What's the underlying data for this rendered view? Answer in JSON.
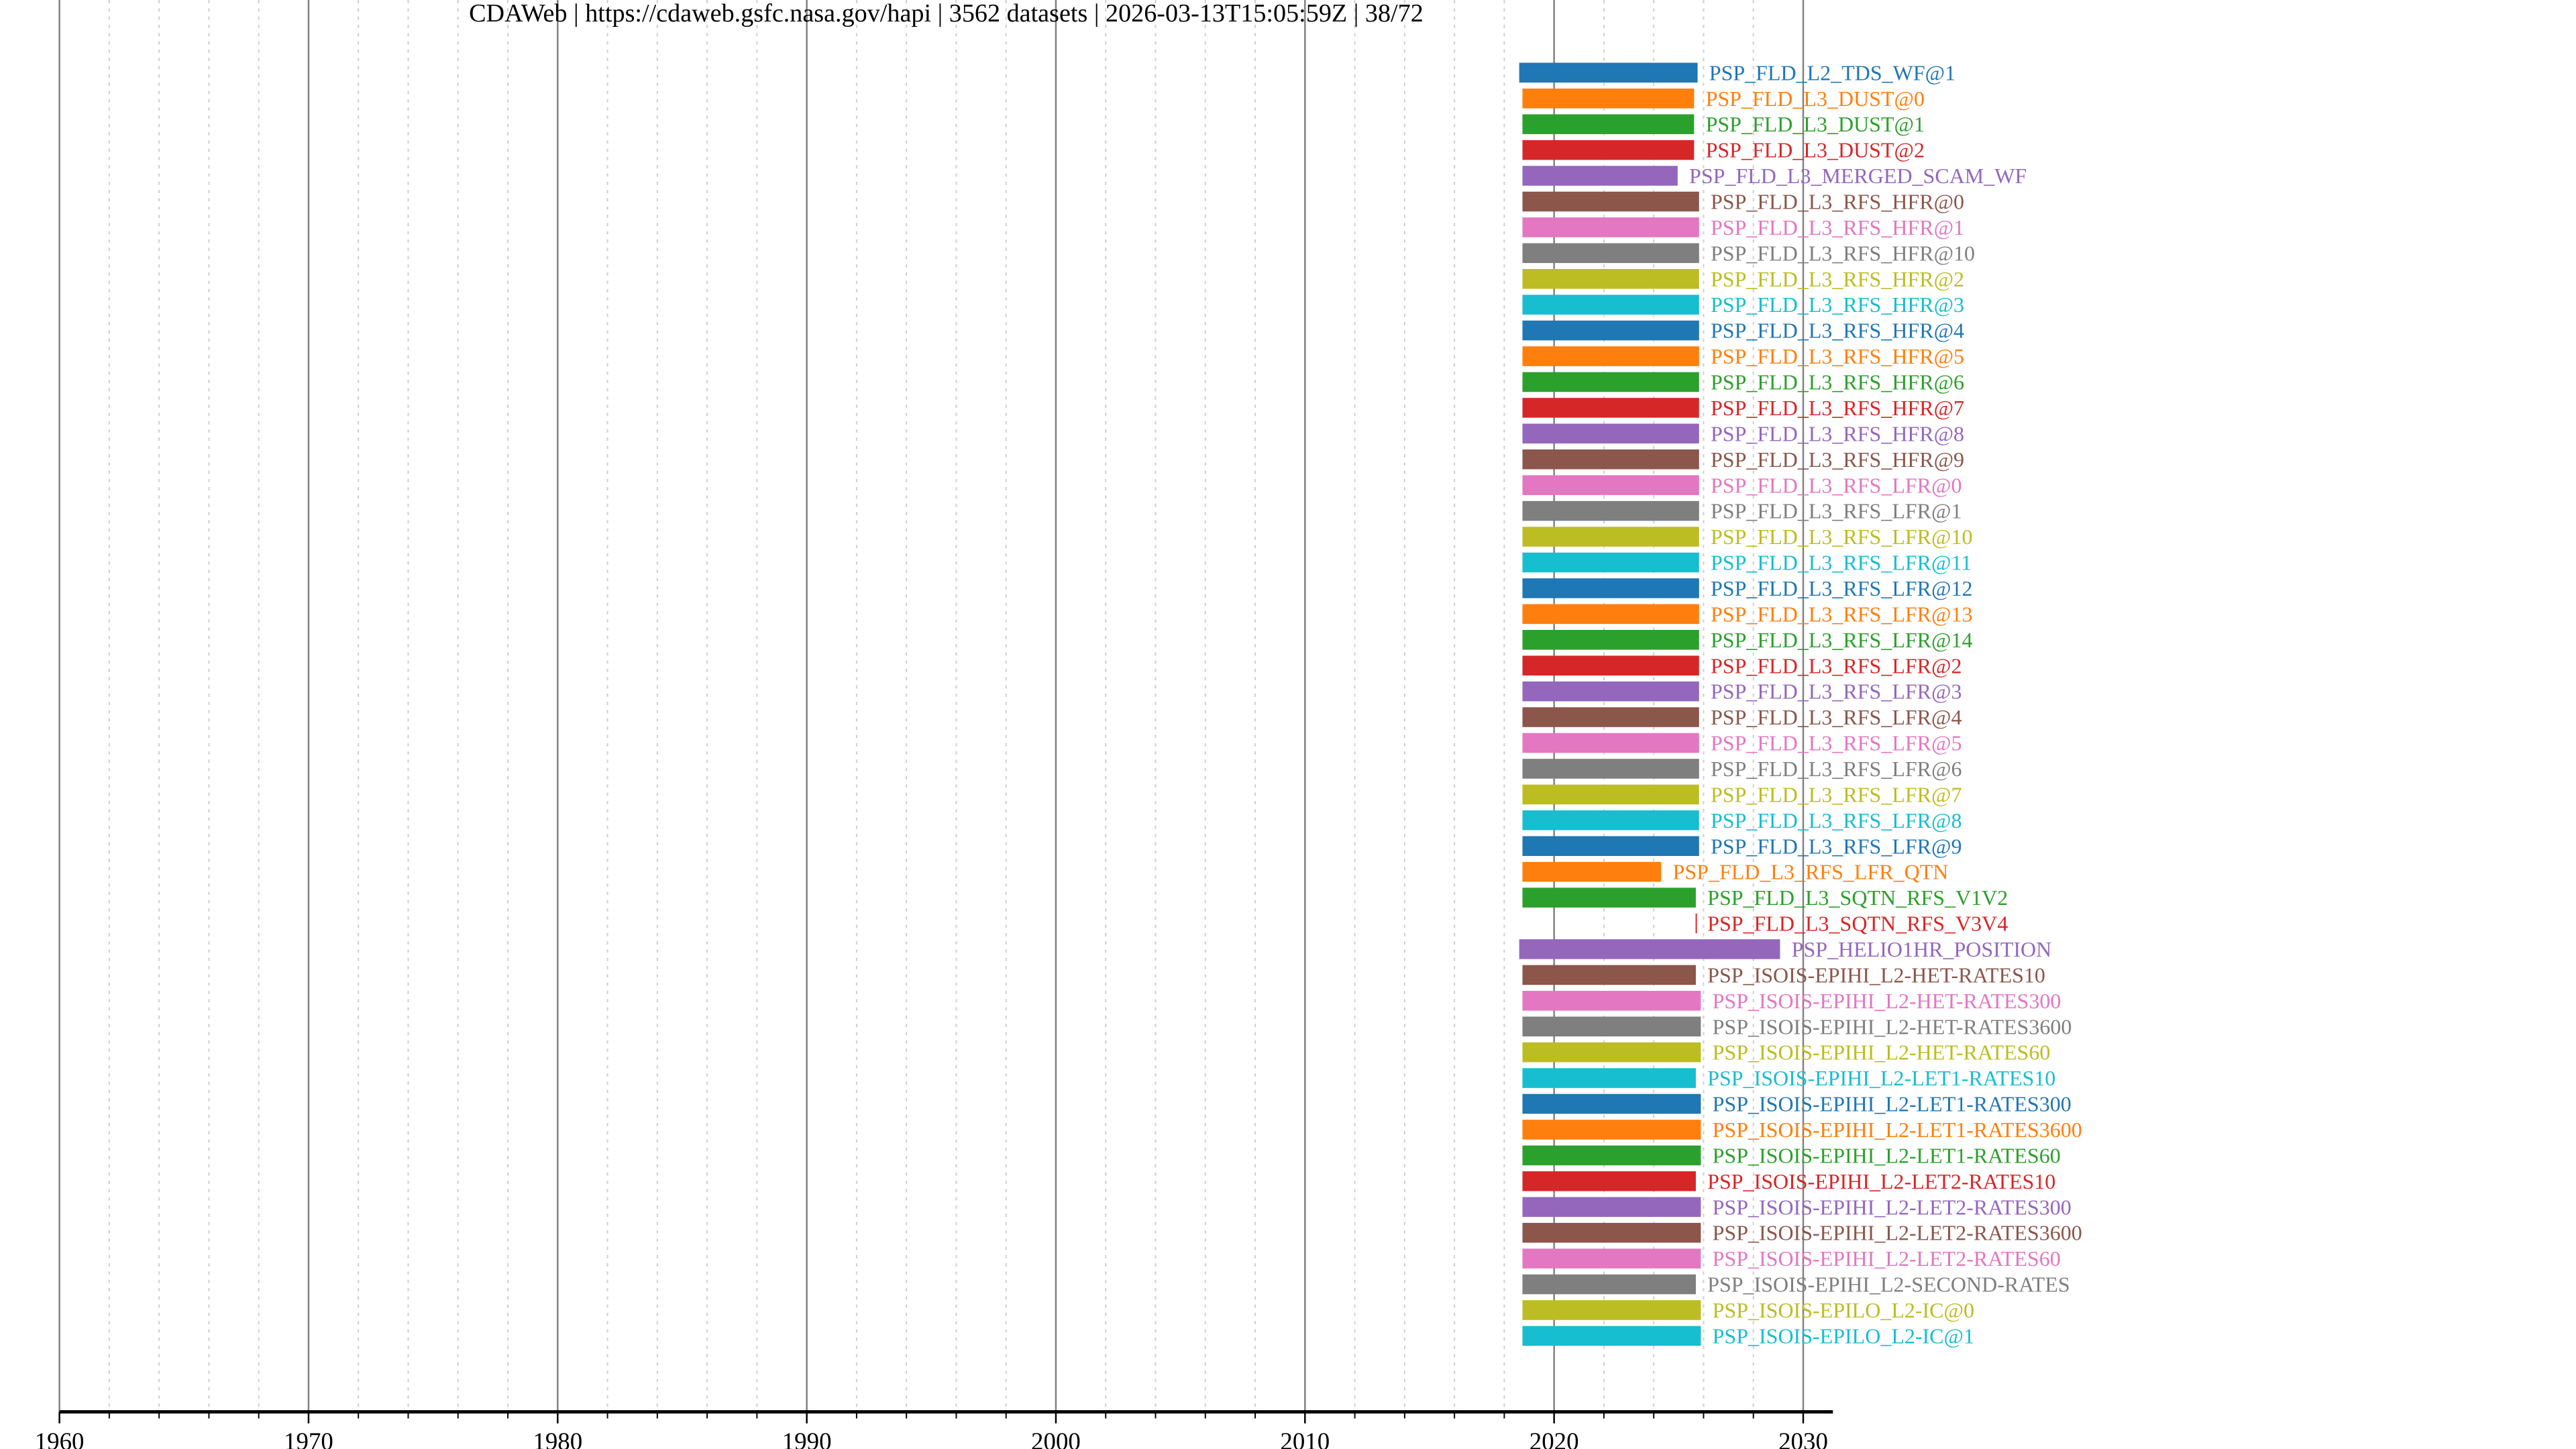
{
  "chart_data": {
    "type": "timeline-bar",
    "title": "CDAWeb | https://cdaweb.gsfc.nasa.gov/hapi | 3562 datasets | 2026-03-13T15:05:59Z | 38/72",
    "xlabel": "",
    "ylabel": "",
    "xlim": [
      1960,
      2031.2
    ],
    "major_ticks": [
      1960,
      1970,
      1980,
      1990,
      2000,
      2010,
      2020,
      2030
    ],
    "tick_labels": [
      "1960",
      "1970",
      "1980",
      "1990",
      "2000",
      "2010",
      "2020",
      "2030"
    ],
    "grid": "major solid every 10 years, minor dotted every 2 years",
    "palette": [
      "#1f77b4",
      "#ff7f0e",
      "#2ca02c",
      "#d62728",
      "#9467bd",
      "#8c564b",
      "#e377c2",
      "#7f7f7f",
      "#bcbd22",
      "#17becf"
    ],
    "datasets": [
      {
        "name": "PSP_FLD_L2_TDS_WF@1",
        "start": 2018.6,
        "end": 2025.76
      },
      {
        "name": "PSP_FLD_L3_DUST@0",
        "start": 2018.73,
        "end": 2025.62
      },
      {
        "name": "PSP_FLD_L3_DUST@1",
        "start": 2018.73,
        "end": 2025.62
      },
      {
        "name": "PSP_FLD_L3_DUST@2",
        "start": 2018.73,
        "end": 2025.62
      },
      {
        "name": "PSP_FLD_L3_MERGED_SCAM_WF",
        "start": 2018.73,
        "end": 2024.96
      },
      {
        "name": "PSP_FLD_L3_RFS_HFR@0",
        "start": 2018.73,
        "end": 2025.82
      },
      {
        "name": "PSP_FLD_L3_RFS_HFR@1",
        "start": 2018.73,
        "end": 2025.82
      },
      {
        "name": "PSP_FLD_L3_RFS_HFR@10",
        "start": 2018.73,
        "end": 2025.82
      },
      {
        "name": "PSP_FLD_L3_RFS_HFR@2",
        "start": 2018.73,
        "end": 2025.82
      },
      {
        "name": "PSP_FLD_L3_RFS_HFR@3",
        "start": 2018.73,
        "end": 2025.82
      },
      {
        "name": "PSP_FLD_L3_RFS_HFR@4",
        "start": 2018.73,
        "end": 2025.82
      },
      {
        "name": "PSP_FLD_L3_RFS_HFR@5",
        "start": 2018.73,
        "end": 2025.82
      },
      {
        "name": "PSP_FLD_L3_RFS_HFR@6",
        "start": 2018.73,
        "end": 2025.82
      },
      {
        "name": "PSP_FLD_L3_RFS_HFR@7",
        "start": 2018.73,
        "end": 2025.82
      },
      {
        "name": "PSP_FLD_L3_RFS_HFR@8",
        "start": 2018.73,
        "end": 2025.82
      },
      {
        "name": "PSP_FLD_L3_RFS_HFR@9",
        "start": 2018.73,
        "end": 2025.82
      },
      {
        "name": "PSP_FLD_L3_RFS_LFR@0",
        "start": 2018.73,
        "end": 2025.82
      },
      {
        "name": "PSP_FLD_L3_RFS_LFR@1",
        "start": 2018.73,
        "end": 2025.82
      },
      {
        "name": "PSP_FLD_L3_RFS_LFR@10",
        "start": 2018.73,
        "end": 2025.82
      },
      {
        "name": "PSP_FLD_L3_RFS_LFR@11",
        "start": 2018.73,
        "end": 2025.82
      },
      {
        "name": "PSP_FLD_L3_RFS_LFR@12",
        "start": 2018.73,
        "end": 2025.82
      },
      {
        "name": "PSP_FLD_L3_RFS_LFR@13",
        "start": 2018.73,
        "end": 2025.82
      },
      {
        "name": "PSP_FLD_L3_RFS_LFR@14",
        "start": 2018.73,
        "end": 2025.82
      },
      {
        "name": "PSP_FLD_L3_RFS_LFR@2",
        "start": 2018.73,
        "end": 2025.82
      },
      {
        "name": "PSP_FLD_L3_RFS_LFR@3",
        "start": 2018.73,
        "end": 2025.82
      },
      {
        "name": "PSP_FLD_L3_RFS_LFR@4",
        "start": 2018.73,
        "end": 2025.82
      },
      {
        "name": "PSP_FLD_L3_RFS_LFR@5",
        "start": 2018.73,
        "end": 2025.82
      },
      {
        "name": "PSP_FLD_L3_RFS_LFR@6",
        "start": 2018.73,
        "end": 2025.82
      },
      {
        "name": "PSP_FLD_L3_RFS_LFR@7",
        "start": 2018.73,
        "end": 2025.82
      },
      {
        "name": "PSP_FLD_L3_RFS_LFR@8",
        "start": 2018.73,
        "end": 2025.82
      },
      {
        "name": "PSP_FLD_L3_RFS_LFR@9",
        "start": 2018.73,
        "end": 2025.82
      },
      {
        "name": "PSP_FLD_L3_RFS_LFR_QTN",
        "start": 2018.73,
        "end": 2024.3
      },
      {
        "name": "PSP_FLD_L3_SQTN_RFS_V1V2",
        "start": 2018.73,
        "end": 2025.69
      },
      {
        "name": "PSP_FLD_L3_SQTN_RFS_V3V4",
        "start": 2025.68,
        "end": 2025.69
      },
      {
        "name": "PSP_HELIO1HR_POSITION",
        "start": 2018.6,
        "end": 2029.07
      },
      {
        "name": "PSP_ISOIS-EPIHI_L2-HET-RATES10",
        "start": 2018.73,
        "end": 2025.69
      },
      {
        "name": "PSP_ISOIS-EPIHI_L2-HET-RATES300",
        "start": 2018.73,
        "end": 2025.89
      },
      {
        "name": "PSP_ISOIS-EPIHI_L2-HET-RATES3600",
        "start": 2018.73,
        "end": 2025.89
      },
      {
        "name": "PSP_ISOIS-EPIHI_L2-HET-RATES60",
        "start": 2018.73,
        "end": 2025.89
      },
      {
        "name": "PSP_ISOIS-EPIHI_L2-LET1-RATES10",
        "start": 2018.73,
        "end": 2025.69
      },
      {
        "name": "PSP_ISOIS-EPIHI_L2-LET1-RATES300",
        "start": 2018.73,
        "end": 2025.89
      },
      {
        "name": "PSP_ISOIS-EPIHI_L2-LET1-RATES3600",
        "start": 2018.73,
        "end": 2025.89
      },
      {
        "name": "PSP_ISOIS-EPIHI_L2-LET1-RATES60",
        "start": 2018.73,
        "end": 2025.89
      },
      {
        "name": "PSP_ISOIS-EPIHI_L2-LET2-RATES10",
        "start": 2018.73,
        "end": 2025.69
      },
      {
        "name": "PSP_ISOIS-EPIHI_L2-LET2-RATES300",
        "start": 2018.73,
        "end": 2025.89
      },
      {
        "name": "PSP_ISOIS-EPIHI_L2-LET2-RATES3600",
        "start": 2018.73,
        "end": 2025.89
      },
      {
        "name": "PSP_ISOIS-EPIHI_L2-LET2-RATES60",
        "start": 2018.73,
        "end": 2025.89
      },
      {
        "name": "PSP_ISOIS-EPIHI_L2-SECOND-RATES",
        "start": 2018.73,
        "end": 2025.69
      },
      {
        "name": "PSP_ISOIS-EPILO_L2-IC@0",
        "start": 2018.73,
        "end": 2025.89
      },
      {
        "name": "PSP_ISOIS-EPILO_L2-IC@1",
        "start": 2018.73,
        "end": 2025.89
      }
    ]
  }
}
